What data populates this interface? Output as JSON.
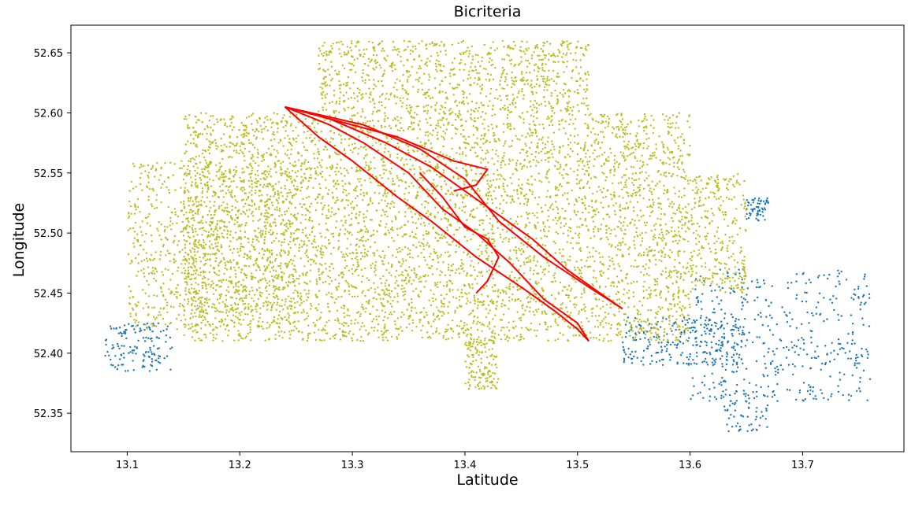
{
  "chart_data": {
    "type": "scatter",
    "title": "Bicriteria",
    "xlabel": "Latitude",
    "ylabel": "Longitude",
    "xlim": [
      13.05,
      13.79
    ],
    "ylim": [
      52.318,
      52.673
    ],
    "x_ticks": [
      "13.1",
      "13.2",
      "13.3",
      "13.4",
      "13.5",
      "13.6",
      "13.7"
    ],
    "y_ticks": [
      "52.35",
      "52.40",
      "52.45",
      "52.50",
      "52.55",
      "52.60",
      "52.65"
    ],
    "grid": false,
    "colors": {
      "blue_nodes": "#1f77b4",
      "yellow_nodes": "#bcbd22",
      "routes": "#ff0000"
    },
    "series": [
      {
        "type": "scatter",
        "color": "#1f77b4",
        "note_regions": [
          {
            "x": [
              13.08,
              13.14
            ],
            "y": [
              52.385,
              52.425
            ]
          },
          {
            "x": [
              13.54,
              13.65
            ],
            "y": [
              52.39,
              52.43
            ]
          },
          {
            "x": [
              13.6,
              13.76
            ],
            "y": [
              52.36,
              52.47
            ]
          },
          {
            "x": [
              13.63,
              13.67
            ],
            "y": [
              52.335,
              52.37
            ]
          },
          {
            "x": [
              13.65,
              13.67
            ],
            "y": [
              52.51,
              52.53
            ]
          }
        ]
      },
      {
        "type": "scatter",
        "color": "#bcbd22",
        "note_regions": [
          {
            "x": [
              13.15,
              13.6
            ],
            "y": [
              52.41,
              52.6
            ]
          },
          {
            "x": [
              13.27,
              13.51
            ],
            "y": [
              52.6,
              52.66
            ]
          },
          {
            "x": [
              13.1,
              13.25
            ],
            "y": [
              52.42,
              52.56
            ]
          },
          {
            "x": [
              13.6,
              13.65
            ],
            "y": [
              52.45,
              52.55
            ]
          },
          {
            "x": [
              13.4,
              13.43
            ],
            "y": [
              52.37,
              52.41
            ]
          }
        ]
      },
      {
        "type": "line",
        "color": "#ff0000",
        "routes": [
          {
            "x": [
              13.24,
              13.27,
              13.3,
              13.34,
              13.37,
              13.41,
              13.45,
              13.48,
              13.5,
              13.51
            ],
            "y": [
              52.605,
              52.58,
              52.56,
              52.53,
              52.51,
              52.48,
              52.455,
              52.435,
              52.42,
              52.41
            ]
          },
          {
            "x": [
              13.24,
              13.28,
              13.33,
              13.37,
              13.4,
              13.43,
              13.46,
              13.49,
              13.52,
              13.54
            ],
            "y": [
              52.605,
              52.595,
              52.575,
              52.555,
              52.535,
              52.515,
              52.495,
              52.47,
              52.45,
              52.437
            ]
          },
          {
            "x": [
              13.24,
              13.31,
              13.36,
              13.4,
              13.43,
              13.47,
              13.51,
              13.54
            ],
            "y": [
              52.605,
              52.59,
              52.57,
              52.545,
              52.51,
              52.48,
              52.455,
              52.437
            ]
          },
          {
            "x": [
              13.24,
              13.28,
              13.31,
              13.35,
              13.38,
              13.41,
              13.44,
              13.47,
              13.5,
              13.51
            ],
            "y": [
              52.605,
              52.59,
              52.575,
              52.55,
              52.52,
              52.5,
              52.475,
              52.445,
              52.425,
              52.41
            ]
          },
          {
            "x": [
              13.28,
              13.34,
              13.39,
              13.42,
              13.41,
              13.39
            ],
            "y": [
              52.595,
              52.58,
              52.56,
              52.553,
              52.54,
              52.535
            ]
          },
          {
            "x": [
              13.36,
              13.38,
              13.4,
              13.42,
              13.43,
              13.42,
              13.41
            ],
            "y": [
              52.55,
              52.53,
              52.505,
              52.495,
              52.48,
              52.46,
              52.45
            ]
          }
        ]
      }
    ]
  }
}
